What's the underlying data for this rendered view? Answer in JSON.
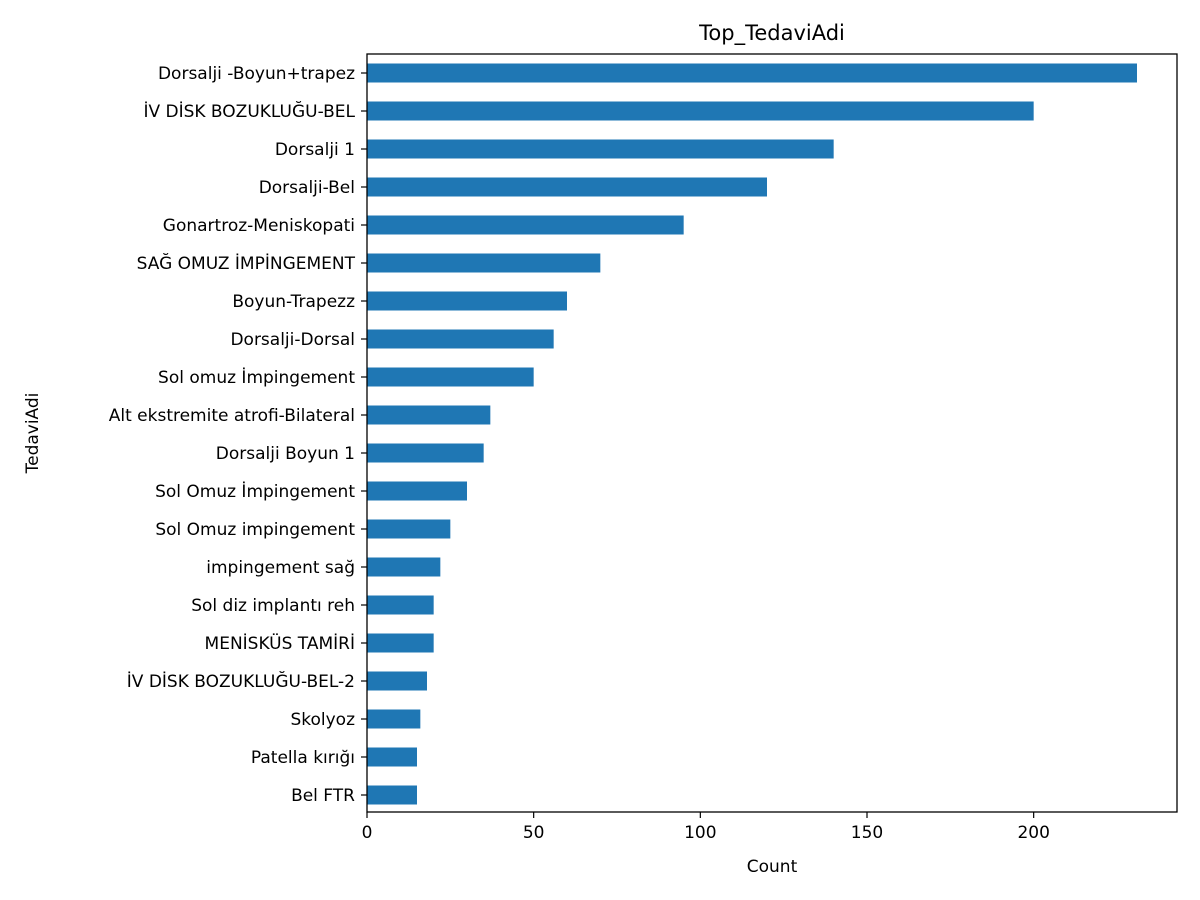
{
  "chart_data": {
    "type": "bar",
    "orientation": "horizontal",
    "title": "Top_TedaviAdi",
    "xlabel": "Count",
    "ylabel": "TedaviAdi",
    "xlim": [
      0,
      243
    ],
    "xticks": [
      0,
      50,
      100,
      150,
      200
    ],
    "grid": false,
    "legend": "none",
    "bar_color": "#1f77b4",
    "categories": [
      "Dorsalji -Boyun+trapez",
      "İV DİSK BOZUKLUĞU-BEL",
      "Dorsalji 1",
      "Dorsalji-Bel",
      "Gonartroz-Meniskopati",
      "SAĞ OMUZ İMPİNGEMENT",
      "Boyun-Trapezz",
      "Dorsalji-Dorsal",
      "Sol omuz İmpingement",
      "Alt ekstremite atrofi-Bilateral",
      "Dorsalji Boyun 1",
      "Sol Omuz İmpingement",
      "Sol Omuz impingement",
      "impingement sağ",
      "Sol diz implantı reh",
      "MENİSKÜS TAMİRİ",
      "İV DİSK BOZUKLUĞU-BEL-2",
      "Skolyoz",
      "Patella kırığı",
      "Bel FTR"
    ],
    "values": [
      231,
      200,
      140,
      120,
      95,
      70,
      60,
      56,
      50,
      37,
      35,
      30,
      25,
      22,
      20,
      20,
      18,
      16,
      15,
      15
    ]
  }
}
